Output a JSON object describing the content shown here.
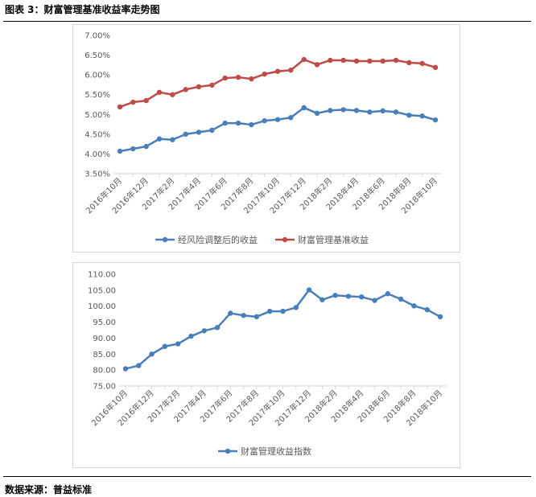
{
  "header": {
    "title": "图表 3：财富管理基准收益率走势图"
  },
  "footer": {
    "source": "数据来源：普益标准"
  },
  "chart_data": [
    {
      "type": "line",
      "categories": [
        "2016年10月",
        "2016年11月",
        "2016年12月",
        "2017年1月",
        "2017年2月",
        "2017年3月",
        "2017年4月",
        "2017年5月",
        "2017年6月",
        "2017年7月",
        "2017年8月",
        "2017年9月",
        "2017年10月",
        "2017年11月",
        "2017年12月",
        "2018年1月",
        "2018年2月",
        "2018年3月",
        "2018年4月",
        "2018年5月",
        "2018年6月",
        "2018年7月",
        "2018年8月",
        "2018年9月",
        "2018年10月"
      ],
      "tick_labels": [
        "2016年10月",
        "2016年12月",
        "2017年2月",
        "2017年4月",
        "2017年6月",
        "2017年8月",
        "2017年10月",
        "2017年12月",
        "2018年2月",
        "2018年4月",
        "2018年6月",
        "2018年8月",
        "2018年10月"
      ],
      "ylim": [
        3.5,
        7.0
      ],
      "yticks": [
        "3.50%",
        "4.00%",
        "4.50%",
        "5.00%",
        "5.50%",
        "6.00%",
        "6.50%",
        "7.00%"
      ],
      "legend": "bottom",
      "grid": false,
      "series": [
        {
          "name": "经风险调整后的收益",
          "color": "#4a7ebb",
          "values": [
            4.07,
            4.13,
            4.19,
            4.38,
            4.36,
            4.5,
            4.55,
            4.6,
            4.78,
            4.78,
            4.74,
            4.84,
            4.87,
            4.92,
            5.17,
            5.03,
            5.1,
            5.12,
            5.1,
            5.06,
            5.09,
            5.06,
            4.98,
            4.96,
            4.86
          ]
        },
        {
          "name": "财富管理基准收益",
          "color": "#be4b48",
          "values": [
            5.19,
            5.31,
            5.35,
            5.56,
            5.5,
            5.63,
            5.7,
            5.74,
            5.92,
            5.94,
            5.9,
            6.02,
            6.09,
            6.12,
            6.39,
            6.26,
            6.37,
            6.37,
            6.35,
            6.35,
            6.35,
            6.37,
            6.31,
            6.29,
            6.19
          ]
        }
      ]
    },
    {
      "type": "line",
      "categories": [
        "2016年10月",
        "2016年11月",
        "2016年12月",
        "2017年1月",
        "2017年2月",
        "2017年3月",
        "2017年4月",
        "2017年5月",
        "2017年6月",
        "2017年7月",
        "2017年8月",
        "2017年9月",
        "2017年10月",
        "2017年11月",
        "2017年12月",
        "2018年1月",
        "2018年2月",
        "2018年3月",
        "2018年4月",
        "2018年5月",
        "2018年6月",
        "2018年7月",
        "2018年8月",
        "2018年9月",
        "2018年10月"
      ],
      "tick_labels": [
        "2016年10月",
        "2016年12月",
        "2017年2月",
        "2017年4月",
        "2017年6月",
        "2017年8月",
        "2017年10月",
        "2017年12月",
        "2018年2月",
        "2018年4月",
        "2018年6月",
        "2018年8月",
        "2018年10月"
      ],
      "ylim": [
        75,
        110
      ],
      "yticks": [
        "75.00",
        "80.00",
        "85.00",
        "90.00",
        "95.00",
        "100.00",
        "105.00",
        "110.00"
      ],
      "legend": "bottom",
      "grid": false,
      "series": [
        {
          "name": "财富管理收益指数",
          "color": "#4a7ebb",
          "values": [
            80.4,
            81.4,
            85.0,
            87.4,
            88.2,
            90.6,
            92.3,
            93.3,
            97.8,
            97.1,
            96.7,
            98.4,
            98.4,
            99.6,
            105.1,
            102.0,
            103.4,
            103.1,
            102.9,
            101.8,
            103.9,
            102.2,
            100.1,
            98.9,
            96.7
          ]
        }
      ]
    }
  ]
}
